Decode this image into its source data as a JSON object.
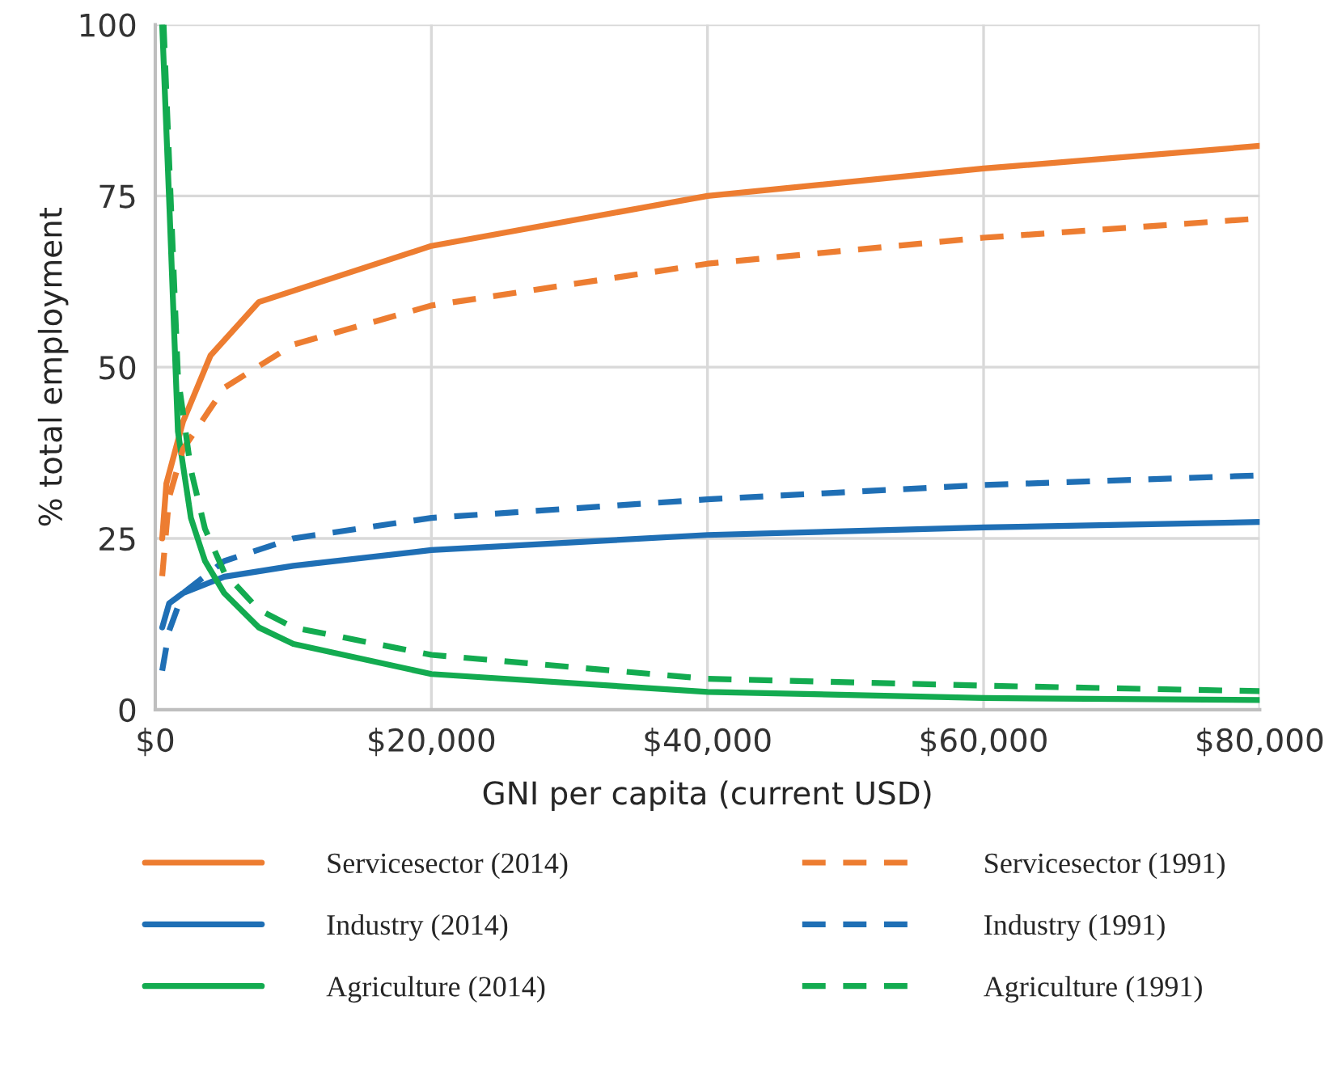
{
  "chart_data": {
    "type": "line",
    "xlabel": "GNI per capita (current USD)",
    "ylabel": "% total employment",
    "xlim": [
      0,
      80000
    ],
    "ylim": [
      0,
      100
    ],
    "xticks": [
      {
        "value": 0,
        "label": "$0"
      },
      {
        "value": 20000,
        "label": "$20,000"
      },
      {
        "value": 40000,
        "label": "$40,000"
      },
      {
        "value": 60000,
        "label": "$60,000"
      },
      {
        "value": 80000,
        "label": "$80,000"
      }
    ],
    "yticks": [
      0,
      25,
      50,
      75,
      100
    ],
    "grid": true,
    "legend": "bottom",
    "series": [
      {
        "name": "Servicesector (2014)",
        "color": "#ed7d31",
        "line_style": "solid",
        "x": [
          500,
          800,
          2000,
          4000,
          7500,
          20000,
          40000,
          60000,
          80000
        ],
        "values": [
          25,
          33,
          42,
          51.7,
          59.5,
          67.7,
          75,
          79,
          82.3
        ]
      },
      {
        "name": "Industry (2014)",
        "color": "#1f6fb5",
        "line_style": "solid",
        "x": [
          500,
          1000,
          2000,
          5000,
          10000,
          20000,
          40000,
          60000,
          80000
        ],
        "values": [
          12,
          15.5,
          17,
          19.4,
          21,
          23.3,
          25.5,
          26.6,
          27.4
        ]
      },
      {
        "name": "Agriculture (2014)",
        "color": "#13ab50",
        "line_style": "solid",
        "x": [
          500,
          1050,
          1640,
          2580,
          3600,
          5000,
          7500,
          10000,
          20000,
          40000,
          60000,
          80000
        ],
        "values": [
          100,
          72,
          40.6,
          28,
          21.7,
          17,
          12,
          9.6,
          5.2,
          2.6,
          1.7,
          1.4
        ]
      },
      {
        "name": "Servicesector (1991)",
        "color": "#ed7d31",
        "line_style": "dashed",
        "x": [
          500,
          1000,
          2000,
          5000,
          10000,
          20000,
          40000,
          60000,
          80000
        ],
        "values": [
          19.5,
          31,
          38,
          47,
          53.3,
          59,
          65.1,
          68.9,
          71.7
        ]
      },
      {
        "name": "Industry (1991)",
        "color": "#1f6fb5",
        "line_style": "dashed",
        "x": [
          500,
          1000,
          2000,
          5000,
          10000,
          20000,
          40000,
          60000,
          80000
        ],
        "values": [
          5.7,
          11.5,
          17,
          21.7,
          25,
          28,
          30.7,
          32.8,
          34.2
        ]
      },
      {
        "name": "Agriculture (1991)",
        "color": "#13ab50",
        "line_style": "dashed",
        "x": [
          600,
          1640,
          2580,
          3600,
          5000,
          7500,
          10000,
          20000,
          40000,
          60000,
          80000
        ],
        "values": [
          100,
          48.6,
          35,
          26.4,
          20,
          14.6,
          12,
          8,
          4.5,
          3.5,
          2.7
        ]
      }
    ]
  }
}
